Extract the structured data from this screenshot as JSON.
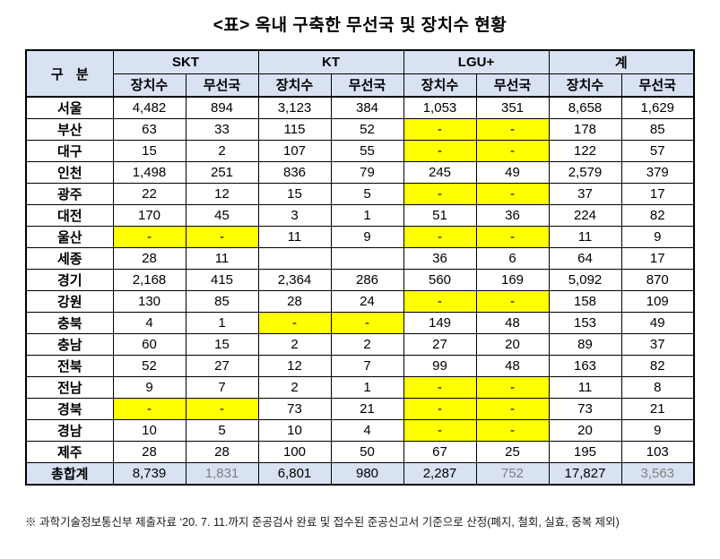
{
  "title": "<표> 옥내 구축한 무선국 및 장치수 현황",
  "footnote": "※ 과학기술정보통신부 제출자료 ‘20. 7. 11.까지 준공검사 완료 및 접수된 준공신고서 기준으로 산정(폐지, 철회, 실효, 중복 제외)",
  "colors": {
    "header_bg": "#D9E2F3",
    "total_bg": "#D9E2F3",
    "highlight": "#FFFF00",
    "border": "#000000",
    "muted_text": "#7F7F7F"
  },
  "table": {
    "corner_label": "구 분",
    "groups": [
      {
        "id": "skt",
        "label": "SKT"
      },
      {
        "id": "kt",
        "label": "KT"
      },
      {
        "id": "lgu",
        "label": "LGU+"
      },
      {
        "id": "sum",
        "label": "계"
      }
    ],
    "subheaders": [
      "장치수",
      "무선국"
    ],
    "rows": [
      {
        "label": "서울",
        "values": [
          "4,482",
          "894",
          "3,123",
          "384",
          "1,053",
          "351",
          "8,658",
          "1,629"
        ],
        "hl": []
      },
      {
        "label": "부산",
        "values": [
          "63",
          "33",
          "115",
          "52",
          "-",
          "-",
          "178",
          "85"
        ],
        "hl": [
          4,
          5
        ]
      },
      {
        "label": "대구",
        "values": [
          "15",
          "2",
          "107",
          "55",
          "-",
          "-",
          "122",
          "57"
        ],
        "hl": [
          4,
          5
        ]
      },
      {
        "label": "인천",
        "values": [
          "1,498",
          "251",
          "836",
          "79",
          "245",
          "49",
          "2,579",
          "379"
        ],
        "hl": []
      },
      {
        "label": "광주",
        "values": [
          "22",
          "12",
          "15",
          "5",
          "-",
          "-",
          "37",
          "17"
        ],
        "hl": [
          4,
          5
        ]
      },
      {
        "label": "대전",
        "values": [
          "170",
          "45",
          "3",
          "1",
          "51",
          "36",
          "224",
          "82"
        ],
        "hl": []
      },
      {
        "label": "울산",
        "values": [
          "-",
          "-",
          "11",
          "9",
          "-",
          "-",
          "11",
          "9"
        ],
        "hl": [
          0,
          1,
          4,
          5
        ]
      },
      {
        "label": "세종",
        "values": [
          "28",
          "11",
          "",
          "",
          "36",
          "6",
          "64",
          "17"
        ],
        "hl": []
      },
      {
        "label": "경기",
        "values": [
          "2,168",
          "415",
          "2,364",
          "286",
          "560",
          "169",
          "5,092",
          "870"
        ],
        "hl": []
      },
      {
        "label": "강원",
        "values": [
          "130",
          "85",
          "28",
          "24",
          "-",
          "-",
          "158",
          "109"
        ],
        "hl": [
          4,
          5
        ]
      },
      {
        "label": "충북",
        "values": [
          "4",
          "1",
          "-",
          "-",
          "149",
          "48",
          "153",
          "49"
        ],
        "hl": [
          2,
          3
        ]
      },
      {
        "label": "충남",
        "values": [
          "60",
          "15",
          "2",
          "2",
          "27",
          "20",
          "89",
          "37"
        ],
        "hl": []
      },
      {
        "label": "전북",
        "values": [
          "52",
          "27",
          "12",
          "7",
          "99",
          "48",
          "163",
          "82"
        ],
        "hl": []
      },
      {
        "label": "전남",
        "values": [
          "9",
          "7",
          "2",
          "1",
          "-",
          "-",
          "11",
          "8"
        ],
        "hl": [
          4,
          5
        ]
      },
      {
        "label": "경북",
        "values": [
          "-",
          "-",
          "73",
          "21",
          "-",
          "-",
          "73",
          "21"
        ],
        "hl": [
          0,
          1,
          4,
          5
        ]
      },
      {
        "label": "경남",
        "values": [
          "10",
          "5",
          "10",
          "4",
          "-",
          "-",
          "20",
          "9"
        ],
        "hl": [
          4,
          5
        ]
      },
      {
        "label": "제주",
        "values": [
          "28",
          "28",
          "100",
          "50",
          "67",
          "25",
          "195",
          "103"
        ],
        "hl": []
      }
    ],
    "total_row": {
      "label": "총합계",
      "values": [
        "8,739",
        "1,831",
        "6,801",
        "980",
        "2,287",
        "752",
        "17,827",
        "3,563"
      ],
      "hl": [],
      "muted": [
        1,
        5,
        7
      ]
    }
  }
}
